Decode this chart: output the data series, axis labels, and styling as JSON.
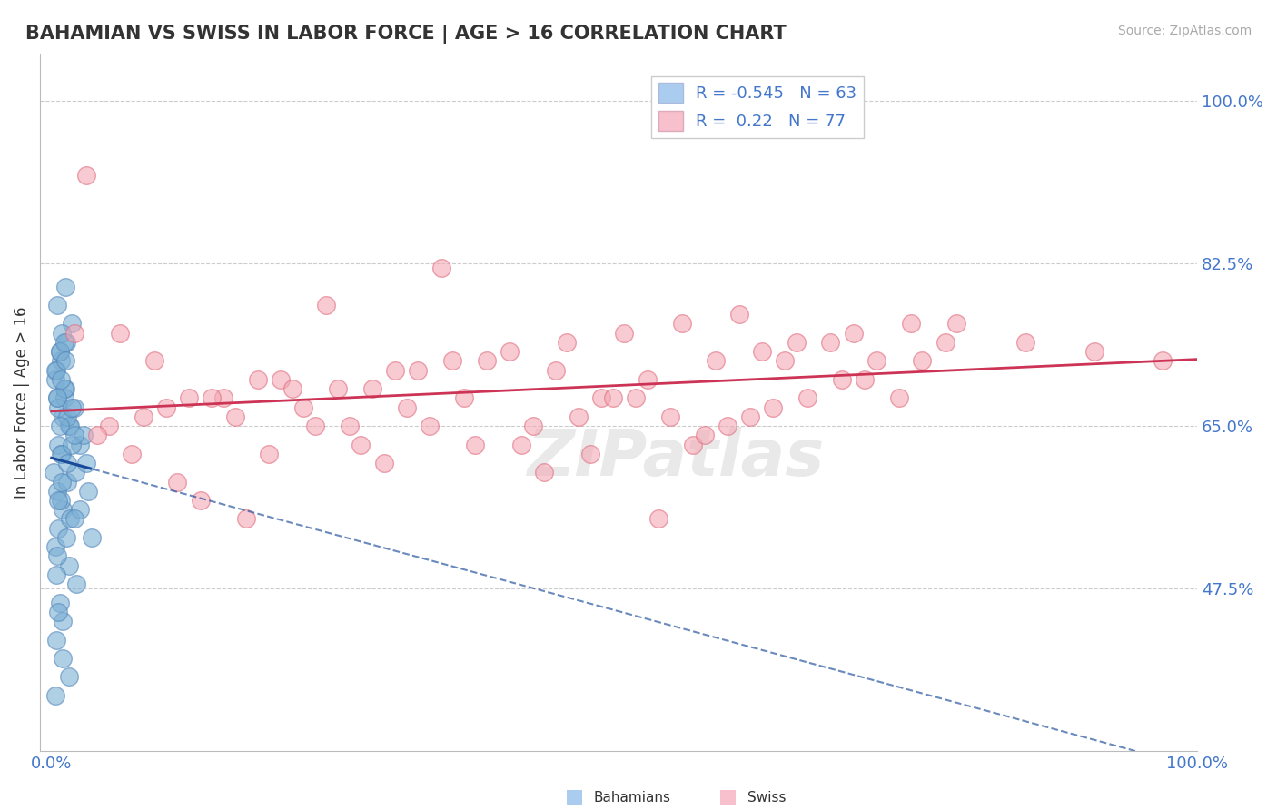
{
  "title": "BAHAMIAN VS SWISS IN LABOR FORCE | AGE > 16 CORRELATION CHART",
  "source_text": "Source: ZipAtlas.com",
  "ylabel": "In Labor Force | Age > 16",
  "watermark": "ZIPatlas",
  "y_tick_values": [
    47.5,
    65.0,
    82.5,
    100.0
  ],
  "bahamian_color": "#7bafd4",
  "bahamian_edge": "#5588bb",
  "swiss_color": "#f4a7b5",
  "swiss_edge": "#e07080",
  "bahamian_line_color": "#1a4a9a",
  "swiss_line_color": "#cc3355",
  "bahamian_R": -0.545,
  "bahamian_N": 63,
  "swiss_R": 0.22,
  "swiss_N": 77,
  "legend_label_1": "Bahamians",
  "legend_label_2": "Swiss",
  "legend_patch_blue": "#aaccee",
  "legend_patch_pink": "#f8c0cc",
  "legend_text_color": "#4477cc",
  "bahamian_scatter_x": [
    0.3,
    0.5,
    0.8,
    1.0,
    1.2,
    0.6,
    1.5,
    0.4,
    0.7,
    1.1,
    0.9,
    1.3,
    1.6,
    2.5,
    0.2,
    0.5,
    1.0,
    0.8,
    1.4,
    0.6,
    0.3,
    1.5,
    2.2,
    0.7,
    1.0,
    0.4,
    1.8,
    2.8,
    0.5,
    1.2,
    0.9,
    0.6,
    1.1,
    0.3,
    0.7,
    1.4,
    2.1,
    0.8,
    1.6,
    0.5,
    0.4,
    0.6,
    1.0,
    1.5,
    0.3,
    0.8,
    1.2,
    2.0,
    0.5,
    1.8,
    0.7,
    1.4,
    0.9,
    0.6,
    1.1,
    2.5,
    1.3,
    2.0,
    3.0,
    3.5,
    2.0,
    1.8,
    3.2
  ],
  "bahamian_scatter_y": [
    70.0,
    68.0,
    72.0,
    66.0,
    69.0,
    63.0,
    65.0,
    71.0,
    73.0,
    68.0,
    62.0,
    74.0,
    65.0,
    63.0,
    60.0,
    58.0,
    56.0,
    57.0,
    59.0,
    54.0,
    52.0,
    50.0,
    48.0,
    46.0,
    44.0,
    42.0,
    76.0,
    64.0,
    78.0,
    80.0,
    75.0,
    67.0,
    69.0,
    71.0,
    73.0,
    66.0,
    60.0,
    62.0,
    55.0,
    51.0,
    49.0,
    45.0,
    40.0,
    38.0,
    36.0,
    70.0,
    72.0,
    67.0,
    68.0,
    63.0,
    65.0,
    61.0,
    59.0,
    57.0,
    74.0,
    56.0,
    53.0,
    55.0,
    61.0,
    53.0,
    64.0,
    67.0,
    58.0
  ],
  "swiss_scatter_x": [
    5.0,
    10.0,
    15.0,
    20.0,
    25.0,
    30.0,
    35.0,
    40.0,
    45.0,
    50.0,
    55.0,
    60.0,
    65.0,
    70.0,
    75.0,
    8.0,
    12.0,
    18.0,
    22.0,
    28.0,
    32.0,
    38.0,
    42.0,
    48.0,
    52.0,
    58.0,
    62.0,
    68.0,
    72.0,
    78.0,
    3.0,
    6.0,
    9.0,
    14.0,
    16.0,
    21.0,
    26.0,
    31.0,
    36.0,
    41.0,
    46.0,
    51.0,
    56.0,
    61.0,
    66.0,
    71.0,
    76.0,
    4.0,
    7.0,
    11.0,
    13.0,
    17.0,
    19.0,
    23.0,
    27.0,
    29.0,
    33.0,
    37.0,
    43.0,
    47.0,
    53.0,
    57.0,
    63.0,
    69.0,
    74.0,
    2.0,
    24.0,
    34.0,
    44.0,
    49.0,
    54.0,
    59.0,
    64.0,
    79.0,
    85.0,
    91.0,
    97.0
  ],
  "swiss_scatter_y": [
    65.0,
    67.0,
    68.0,
    70.0,
    69.0,
    71.0,
    72.0,
    73.0,
    74.0,
    75.0,
    76.0,
    77.0,
    74.0,
    75.0,
    76.0,
    66.0,
    68.0,
    70.0,
    67.0,
    69.0,
    71.0,
    72.0,
    65.0,
    68.0,
    70.0,
    72.0,
    73.0,
    74.0,
    72.0,
    74.0,
    92.0,
    75.0,
    72.0,
    68.0,
    66.0,
    69.0,
    65.0,
    67.0,
    68.0,
    63.0,
    66.0,
    68.0,
    63.0,
    66.0,
    68.0,
    70.0,
    72.0,
    64.0,
    62.0,
    59.0,
    57.0,
    55.0,
    62.0,
    65.0,
    63.0,
    61.0,
    65.0,
    63.0,
    60.0,
    62.0,
    55.0,
    64.0,
    67.0,
    70.0,
    68.0,
    75.0,
    78.0,
    82.0,
    71.0,
    68.0,
    66.0,
    65.0,
    72.0,
    76.0,
    74.0,
    73.0,
    72.0
  ],
  "xlim": [
    -1.0,
    100.0
  ],
  "ylim": [
    30.0,
    105.0
  ],
  "background_color": "#ffffff",
  "grid_color": "#cccccc",
  "title_fontsize": 15,
  "tick_label_color": "#4477cc",
  "tick_label_fontsize": 13
}
